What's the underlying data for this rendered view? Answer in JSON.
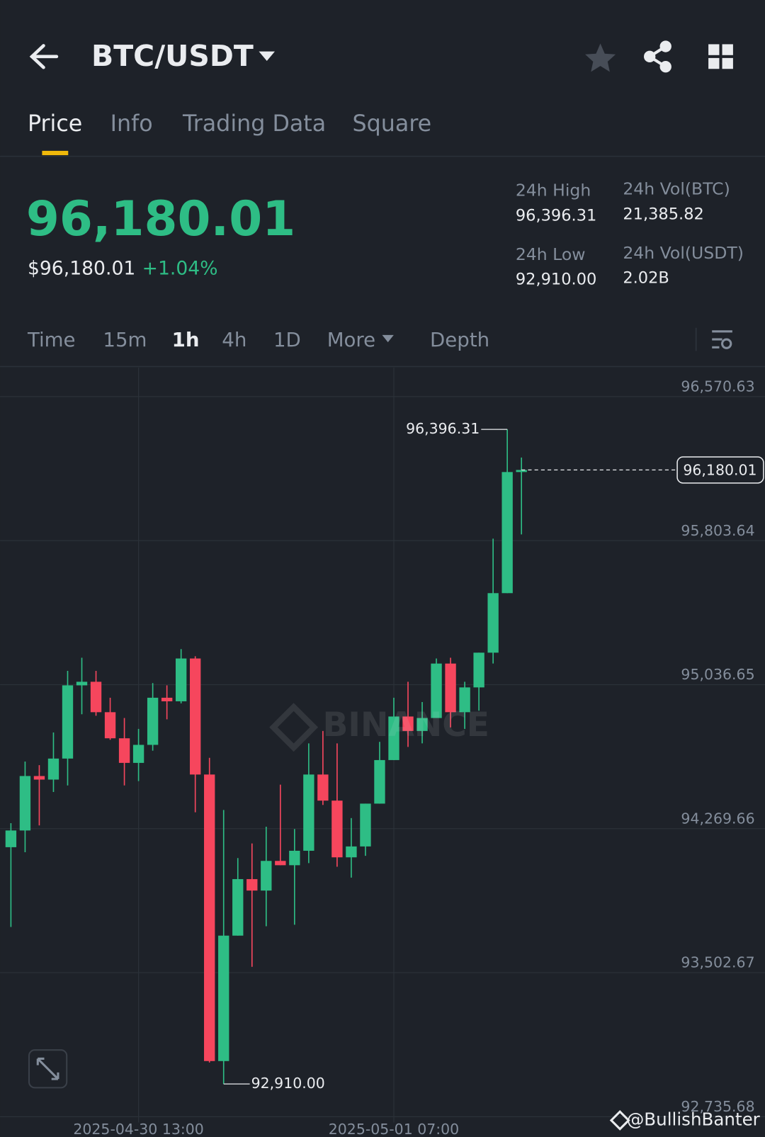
{
  "header": {
    "title": "BTC/USDT"
  },
  "tabs": [
    "Price",
    "Info",
    "Trading Data",
    "Square"
  ],
  "ticker": {
    "price": "96,180.01",
    "fiat_price": "$96,180.01",
    "change": "+1.04%"
  },
  "stats": [
    {
      "label": "24h High",
      "value": "96,396.31"
    },
    {
      "label": "24h Vol(BTC)",
      "value": "21,385.82"
    },
    {
      "label": "24h Low",
      "value": "92,910.00"
    },
    {
      "label": "24h Vol(USDT)",
      "value": "2.02B"
    }
  ],
  "intervals": [
    "Time",
    "15m",
    "1h",
    "4h",
    "1D",
    "More",
    "Depth"
  ],
  "watermark": "BINANCE",
  "credit": "@BullishBanter",
  "chart_data": {
    "type": "candlestick",
    "up_color": "#2ebd85",
    "down_color": "#f6465d",
    "categories": [
      null,
      null,
      null,
      null,
      null,
      null,
      null,
      null,
      null,
      "2025-04-30 13:00",
      null,
      null,
      null,
      null,
      null,
      null,
      null,
      null,
      null,
      null,
      null,
      null,
      null,
      null,
      null,
      null,
      null,
      "2025-05-01 07:00",
      null,
      null,
      null,
      null,
      null,
      null,
      null,
      null,
      null
    ],
    "open": [
      94171,
      94260,
      94550,
      94531,
      94643,
      95033,
      95052,
      94890,
      94751,
      94620,
      94716,
      94967,
      94948,
      95176,
      94558,
      93032,
      93700,
      94001,
      93940,
      94098,
      94075,
      94152,
      94558,
      94419,
      94117,
      94175,
      94403,
      94635,
      94867,
      94790,
      94859,
      95149,
      94890,
      95022,
      95207,
      95524,
      96169
    ],
    "high": [
      94299,
      94627,
      94608,
      94782,
      95110,
      95180,
      95110,
      94967,
      94859,
      94801,
      95045,
      95033,
      95226,
      95188,
      94647,
      94369,
      94113,
      94191,
      94280,
      94504,
      94268,
      94724,
      94790,
      94724,
      94326,
      94403,
      94732,
      94967,
      95052,
      94944,
      95176,
      95180,
      95052,
      95207,
      95814,
      96396.31,
      96246
    ],
    "low": [
      93746,
      94144,
      94287,
      94465,
      94500,
      94879,
      94871,
      94743,
      94500,
      94523,
      94685,
      94852,
      94937,
      94357,
      93024,
      92910,
      93700,
      93534,
      93750,
      94075,
      93758,
      94086,
      94396,
      94067,
      94009,
      94125,
      94403,
      94635,
      94705,
      94724,
      94859,
      94809,
      94801,
      94898,
      95149,
      95524,
      95837
    ],
    "close": [
      94260,
      94550,
      94531,
      94643,
      95033,
      95052,
      94890,
      94751,
      94620,
      94716,
      94967,
      94948,
      95176,
      94558,
      93032,
      93700,
      94001,
      93940,
      94098,
      94075,
      94152,
      94558,
      94419,
      94117,
      94175,
      94403,
      94635,
      94867,
      94790,
      94859,
      95149,
      94890,
      95022,
      95207,
      95524,
      96169,
      96180.01
    ],
    "ylim": [
      92735.68,
      96725
    ],
    "yticks": [
      {
        "value": 92735.68,
        "label": "92,735.68"
      },
      {
        "value": 93502.67,
        "label": "93,502.67"
      },
      {
        "value": 94269.66,
        "label": "94,269.66"
      },
      {
        "value": 95036.65,
        "label": "95,036.65"
      },
      {
        "value": 95803.64,
        "label": "95,803.64"
      },
      {
        "value": 96570.63,
        "label": "96,570.63"
      }
    ],
    "grid": true,
    "high_marker": {
      "value": 96396.31,
      "label": "96,396.31"
    },
    "low_marker": {
      "value": 92910.0,
      "label": "92,910.00"
    },
    "last_price": {
      "value": 96180.01,
      "label": "96,180.01"
    }
  }
}
